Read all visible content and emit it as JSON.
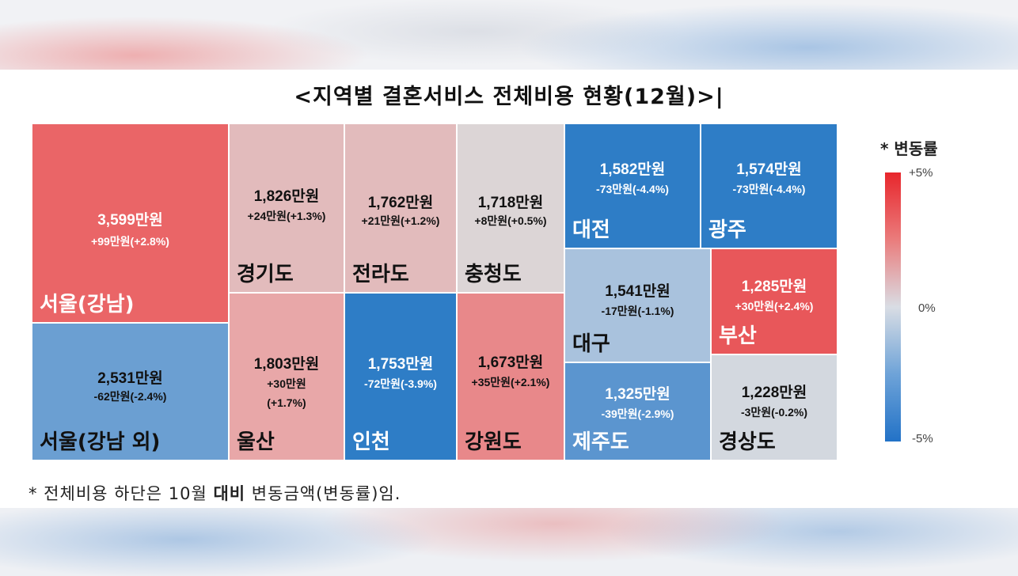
{
  "title": "<지역별 결혼서비스 전체비용 현황(12월)>|",
  "footnote": {
    "prefix": "* 전체비용 하단은 10월 ",
    "bold": "대비",
    "suffix": " 변동금액(변동률)임."
  },
  "legend": {
    "title": "* 변동률",
    "max_label": "+5%",
    "mid_label": "0%",
    "min_label": "-5%"
  },
  "colors": {
    "strong_red": "#ea6567",
    "light_red": "#e8a7a8",
    "faint_red": "#e2bbbc",
    "neutral": "#dcd5d6",
    "light_blue": "#a9c2dd",
    "mid_blue": "#6b9fd2",
    "strong_blue": "#2e7dc6"
  },
  "chart_data": {
    "type": "treemap",
    "title": "<지역별 결혼서비스 전체비용 현황(12월)>|",
    "unit": "만원",
    "regions": [
      {
        "name": "서울(강남)",
        "value": 3599,
        "value_label": "3,599만원",
        "change": 99,
        "rate": 2.8,
        "change_label": "+99만원(+2.8%)"
      },
      {
        "name": "서울(강남 외)",
        "value": 2531,
        "value_label": "2,531만원",
        "change": -62,
        "rate": -2.4,
        "change_label": "-62만원(-2.4%)"
      },
      {
        "name": "경기도",
        "value": 1826,
        "value_label": "1,826만원",
        "change": 24,
        "rate": 1.3,
        "change_label": "+24만원(+1.3%)"
      },
      {
        "name": "전라도",
        "value": 1762,
        "value_label": "1,762만원",
        "change": 21,
        "rate": 1.2,
        "change_label": "+21만원(+1.2%)"
      },
      {
        "name": "충청도",
        "value": 1718,
        "value_label": "1,718만원",
        "change": 8,
        "rate": 0.5,
        "change_label": "+8만원(+0.5%)"
      },
      {
        "name": "울산",
        "value": 1803,
        "value_label": "1,803만원",
        "change": 30,
        "rate": 1.7,
        "change_label_1": "+30만원",
        "change_label_2": "(+1.7%)"
      },
      {
        "name": "인천",
        "value": 1753,
        "value_label": "1,753만원",
        "change": -72,
        "rate": -3.9,
        "change_label": "-72만원(-3.9%)"
      },
      {
        "name": "강원도",
        "value": 1673,
        "value_label": "1,673만원",
        "change": 35,
        "rate": 2.1,
        "change_label": "+35만원(+2.1%)"
      },
      {
        "name": "대전",
        "value": 1582,
        "value_label": "1,582만원",
        "change": -73,
        "rate": -4.4,
        "change_label": "-73만원(-4.4%)"
      },
      {
        "name": "광주",
        "value": 1574,
        "value_label": "1,574만원",
        "change": -73,
        "rate": -4.4,
        "change_label": "-73만원(-4.4%)"
      },
      {
        "name": "대구",
        "value": 1541,
        "value_label": "1,541만원",
        "change": -17,
        "rate": -1.1,
        "change_label": "-17만원(-1.1%)"
      },
      {
        "name": "부산",
        "value": 1285,
        "value_label": "1,285만원",
        "change": 30,
        "rate": 2.4,
        "change_label": "+30만원(+2.4%)"
      },
      {
        "name": "제주도",
        "value": 1325,
        "value_label": "1,325만원",
        "change": -39,
        "rate": -2.9,
        "change_label": "-39만원(-2.9%)"
      },
      {
        "name": "경상도",
        "value": 1228,
        "value_label": "1,228만원",
        "change": -3,
        "rate": -0.2,
        "change_label": "-3만원(-0.2%)"
      }
    ],
    "color_scale": {
      "min_rate": -5,
      "max_rate": 5
    }
  }
}
